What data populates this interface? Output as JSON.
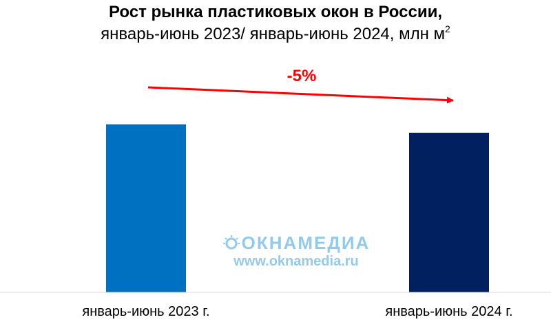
{
  "chart_data": {
    "type": "bar",
    "title": "Рост рынка пластиковых окон в России,",
    "subtitle": "январь-июнь 2023/ январь-июнь 2024, млн м",
    "subtitle_sup": "2",
    "categories": [
      "январь-июнь 2023 г.",
      "январь-июнь 2024 г."
    ],
    "series": [
      {
        "values": [
          100,
          95
        ],
        "colors": [
          "#0070c0",
          "#002060"
        ]
      }
    ],
    "annotation": {
      "text": "-5%",
      "color": "#ff0000"
    },
    "ylim": [
      0,
      140
    ],
    "grid": false,
    "legend": "none"
  },
  "watermark": {
    "brand": "ОКНАМЕДИА",
    "url": "www.oknamedia.ru",
    "color": "#3aa0e0"
  }
}
